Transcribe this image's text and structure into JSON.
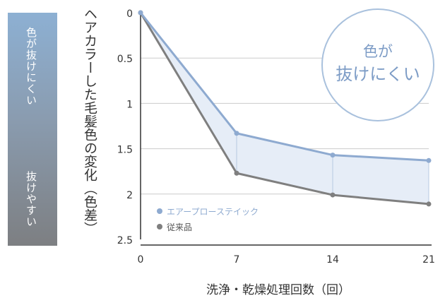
{
  "scale_bar": {
    "top_label": "色が抜けにくい",
    "bottom_label": "抜けやすい"
  },
  "badge": {
    "line1": "色が",
    "line2": "抜けにくい"
  },
  "colors": {
    "series_primary": "#8eaad0",
    "series_secondary": "#7f7f7f",
    "fill_between": "#e6edf7",
    "badge_border": "#a9c1dd",
    "badge_text": "#7d9cc6",
    "grid": "#cccccc",
    "axis": "#333333"
  },
  "chart_data": {
    "type": "line",
    "xlabel": "洗浄・乾燥処理回数（回）",
    "ylabel": "ヘアカラーした毛髪色の変化（色差）",
    "x": [
      0,
      7,
      14,
      21
    ],
    "x_ticks": [
      "0",
      "7",
      "14",
      "21"
    ],
    "y_ticks": [
      "0",
      "0.5",
      "1",
      "1.5",
      "2",
      "2.5"
    ],
    "ylim": [
      0,
      2.5
    ],
    "y_inverted": true,
    "grid": "horizontal",
    "legend_position": "bottom-left",
    "fill_between_series": true,
    "series": [
      {
        "name": "エアープローステイック",
        "values": [
          0,
          1.33,
          1.57,
          1.63
        ]
      },
      {
        "name": "従来品",
        "values": [
          0,
          1.77,
          2.01,
          2.11
        ]
      }
    ]
  }
}
